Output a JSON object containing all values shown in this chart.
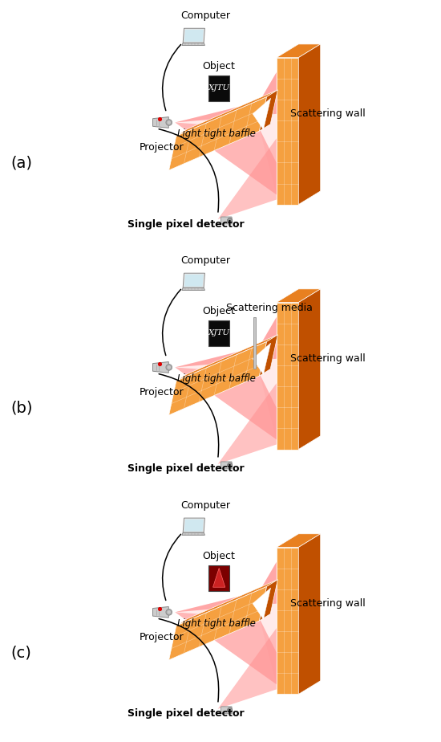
{
  "bg_color": "#ffffff",
  "panel_labels": [
    "(a)",
    "(b)",
    "(c)"
  ],
  "orange_mid": "#F07818",
  "orange_light": "#F5A040",
  "orange_dark": "#C05000",
  "orange_top": "#E88020",
  "pink1": "#FFB8B8",
  "pink2": "#FF9090",
  "pink3": "#FFC8C8",
  "text_fontsize": 9,
  "label_fontsize": 14,
  "labels": {
    "computer": "Computer",
    "projector": "Projector",
    "object": "Object",
    "scattering_wall": "Scattering wall",
    "light_tight_baffle": "Light tight baffle",
    "single_pixel_detector": "Single pixel detector",
    "scattering_media": "Scattering media"
  }
}
